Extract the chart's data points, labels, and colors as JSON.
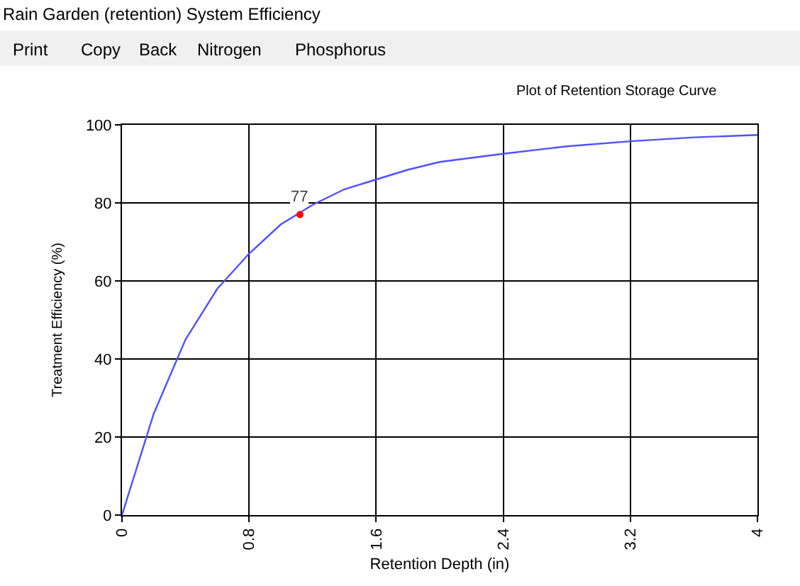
{
  "chart_data": {
    "type": "line",
    "title": "Rain Garden (retention) System Efficiency",
    "subtitle": "Plot of Retention Storage Curve",
    "xlabel": "Retention Depth (in)",
    "ylabel": "Treatment Efficiency (%)",
    "annotations": [
      "Print",
      "Copy",
      "Back",
      "Nitrogen",
      "Phosphorus"
    ],
    "series": [
      {
        "color": "#5050ff",
        "marker": "none",
        "x": [
          0,
          0.2,
          0.4,
          0.6,
          0.8,
          1.0,
          1.2,
          1.4,
          1.6,
          1.8,
          2.0,
          2.4,
          2.8,
          3.2,
          3.6,
          4.0
        ],
        "values": [
          0,
          26,
          45,
          58,
          67,
          74.5,
          79.5,
          83.5,
          86,
          88.5,
          90.5,
          92.6,
          94.5,
          95.8,
          96.8,
          97.4
        ]
      },
      {
        "type": "scatter",
        "marker": "circle",
        "color": "#ff0000",
        "x": [
          1.12
        ],
        "values": [
          77
        ],
        "value_labels": [
          "77"
        ]
      }
    ],
    "xlim": [
      0,
      4
    ],
    "xticks": [
      0,
      0.8,
      1.6,
      2.4,
      3.2,
      4
    ],
    "ylim": [
      0,
      100
    ],
    "yticks": [
      0,
      20,
      40,
      60,
      80,
      100
    ],
    "grid": true,
    "line_style": "solid"
  }
}
